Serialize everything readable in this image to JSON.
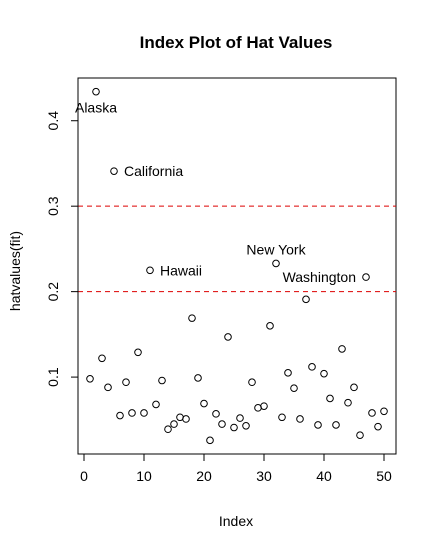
{
  "chart_data": {
    "type": "scatter",
    "title": "Index Plot of Hat Values",
    "xlabel": "Index",
    "ylabel": "hatvalues(fit)",
    "xlim": [
      -1,
      52
    ],
    "ylim": [
      0.01,
      0.45
    ],
    "xticks": [
      0,
      10,
      20,
      30,
      40,
      50
    ],
    "yticks": [
      0.1,
      0.2,
      0.3,
      0.4
    ],
    "grid": false,
    "reference_lines": [
      {
        "y": 0.2,
        "color": "#dd0000",
        "style": "dashed"
      },
      {
        "y": 0.3,
        "color": "#dd0000",
        "style": "dashed"
      }
    ],
    "x": [
      1,
      2,
      3,
      4,
      5,
      6,
      7,
      8,
      9,
      10,
      11,
      12,
      13,
      14,
      15,
      16,
      17,
      18,
      19,
      20,
      21,
      22,
      23,
      24,
      25,
      26,
      27,
      28,
      29,
      30,
      31,
      32,
      33,
      34,
      35,
      36,
      37,
      38,
      39,
      40,
      41,
      42,
      43,
      44,
      45,
      46,
      47,
      48,
      49,
      50
    ],
    "y": [
      0.098,
      0.434,
      0.122,
      0.088,
      0.341,
      0.055,
      0.094,
      0.058,
      0.129,
      0.058,
      0.225,
      0.068,
      0.096,
      0.039,
      0.045,
      0.053,
      0.051,
      0.169,
      0.099,
      0.069,
      0.026,
      0.057,
      0.045,
      0.147,
      0.041,
      0.052,
      0.043,
      0.094,
      0.064,
      0.066,
      0.16,
      0.233,
      0.053,
      0.105,
      0.087,
      0.051,
      0.191,
      0.112,
      0.044,
      0.104,
      0.075,
      0.044,
      0.133,
      0.07,
      0.088,
      0.032,
      0.217,
      0.058,
      0.042,
      0.06
    ],
    "annotations": [
      {
        "text": "Alaska",
        "x": 2,
        "y": 0.434,
        "pos": "below"
      },
      {
        "text": "California",
        "x": 5,
        "y": 0.341,
        "pos": "right"
      },
      {
        "text": "Hawaii",
        "x": 11,
        "y": 0.225,
        "pos": "right"
      },
      {
        "text": "New York",
        "x": 32,
        "y": 0.233,
        "pos": "above"
      },
      {
        "text": "Washington",
        "x": 47,
        "y": 0.217,
        "pos": "left"
      }
    ]
  }
}
